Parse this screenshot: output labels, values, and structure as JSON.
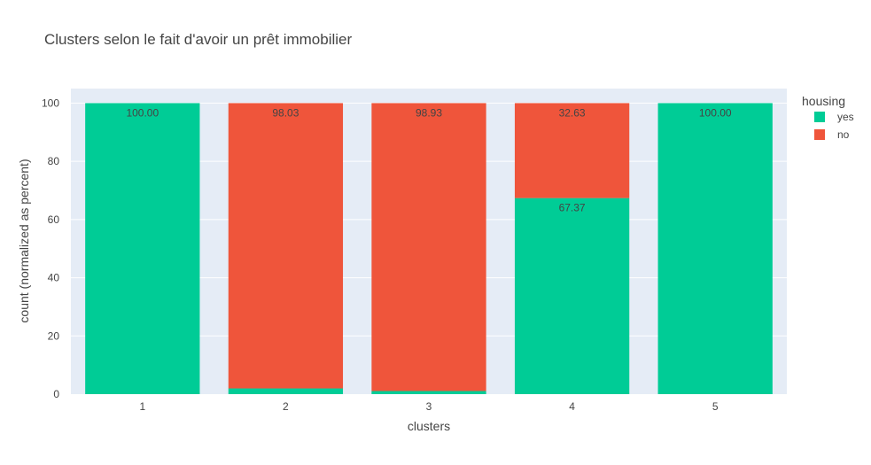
{
  "chart_data": {
    "type": "bar",
    "barmode": "stack",
    "title": "Clusters selon le fait d'avoir un prêt immobilier",
    "xlabel": "clusters",
    "ylabel": "count (normalized as percent)",
    "categories": [
      "1",
      "2",
      "3",
      "4",
      "5"
    ],
    "ylim": [
      0,
      105
    ],
    "yticks": [
      0,
      20,
      40,
      60,
      80,
      100
    ],
    "grid": true,
    "legend": {
      "title": "housing",
      "position": "right"
    },
    "series": [
      {
        "name": "yes",
        "color": "#00cc96",
        "values": [
          100.0,
          1.97,
          1.07,
          67.37,
          100.0
        ],
        "labels": [
          "100.00",
          "",
          "",
          "67.37",
          "100.00"
        ]
      },
      {
        "name": "no",
        "color": "#ef553b",
        "values": [
          0,
          98.03,
          98.93,
          32.63,
          0
        ],
        "labels": [
          "",
          "98.03",
          "98.93",
          "32.63",
          ""
        ]
      }
    ],
    "plot_bgcolor": "#e5ecf6"
  }
}
